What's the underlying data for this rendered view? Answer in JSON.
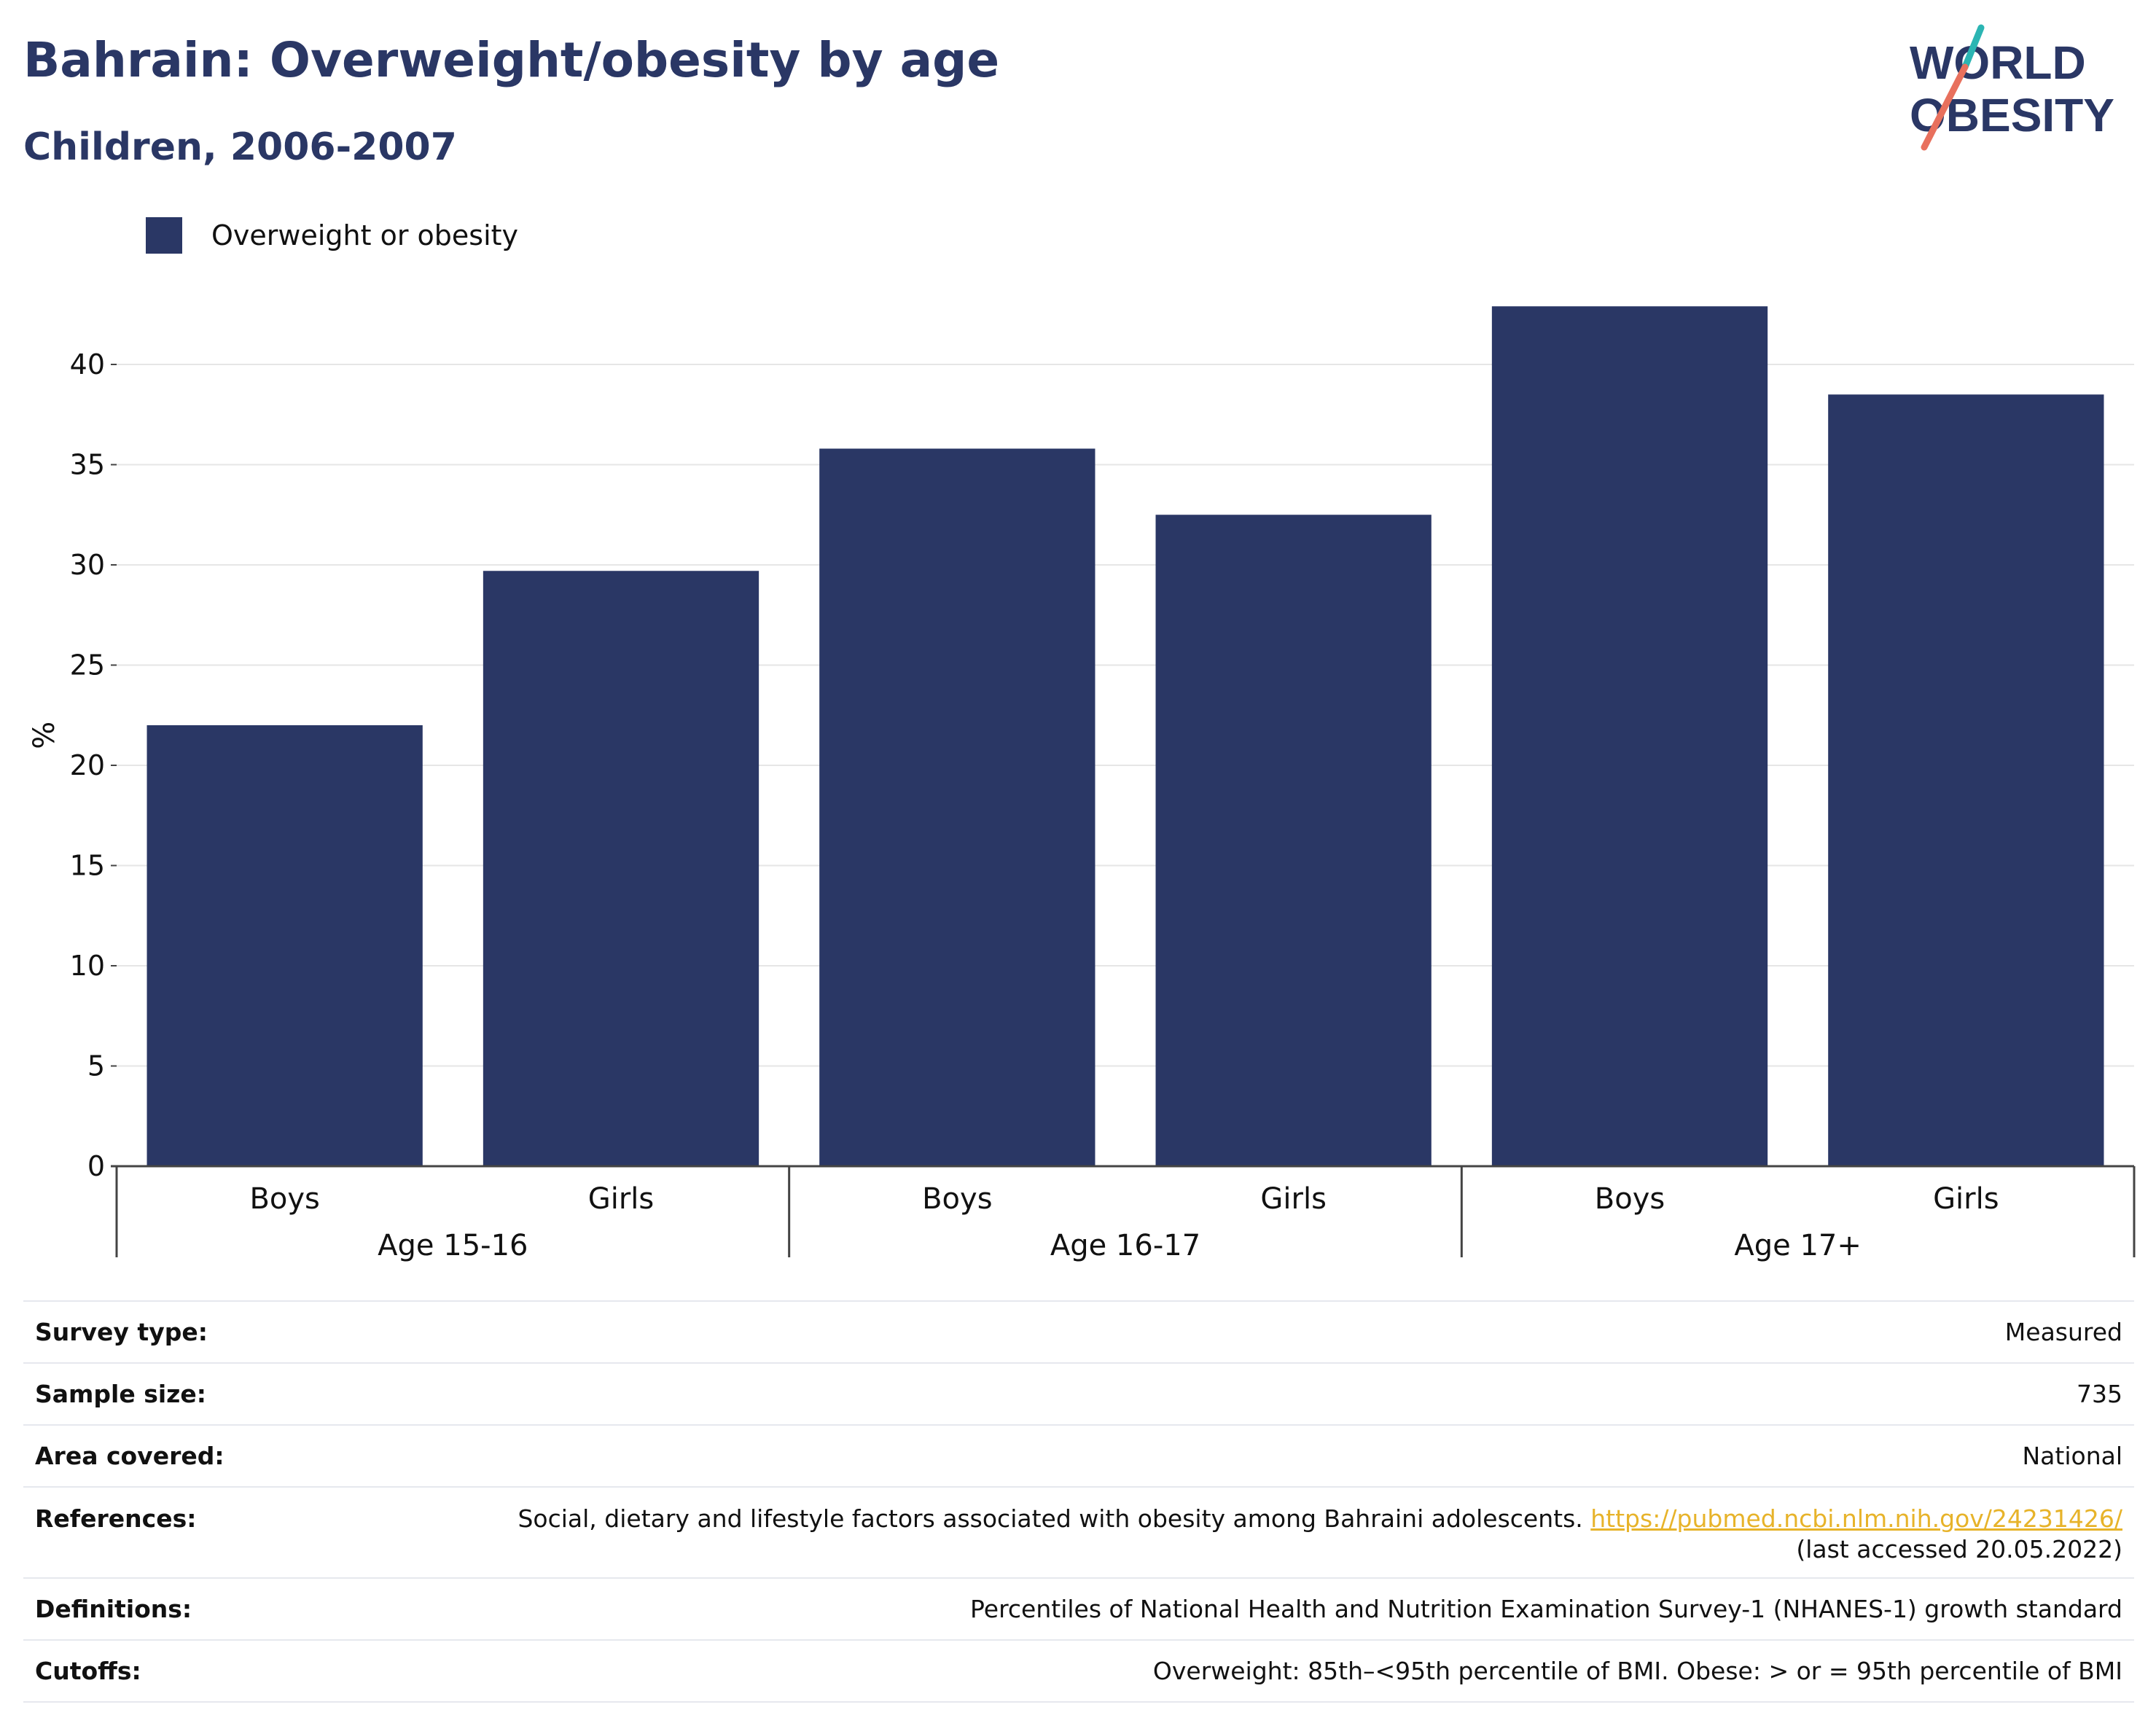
{
  "header": {
    "title": "Bahrain: Overweight/obesity by age",
    "subtitle": "Children, 2006-2007"
  },
  "logo": {
    "line1": "WORLD",
    "line2": "OBESITY"
  },
  "colors": {
    "bar": "#2a3765",
    "title": "#2a3765",
    "grid": "#e6e6e6",
    "axis": "#444444",
    "link": "#e7b32a",
    "logo_teal": "#2bb5b3",
    "logo_coral": "#e8705d"
  },
  "chart_data": {
    "type": "bar",
    "legend": {
      "label": "Overweight or obesity",
      "placement": "top-left"
    },
    "ylabel": "%",
    "ylim": [
      0,
      43
    ],
    "yticks": [
      0,
      5,
      10,
      15,
      20,
      25,
      30,
      35,
      40
    ],
    "grid": true,
    "groups": [
      {
        "label": "Age 15-16",
        "bars": [
          {
            "category": "Boys",
            "value": 22.0
          },
          {
            "category": "Girls",
            "value": 29.7
          }
        ]
      },
      {
        "label": "Age 16-17",
        "bars": [
          {
            "category": "Boys",
            "value": 35.8
          },
          {
            "category": "Girls",
            "value": 32.5
          }
        ]
      },
      {
        "label": "Age 17+",
        "bars": [
          {
            "category": "Boys",
            "value": 42.9
          },
          {
            "category": "Girls",
            "value": 38.5
          }
        ]
      }
    ]
  },
  "info": {
    "survey_type": {
      "label": "Survey type:",
      "value": "Measured"
    },
    "sample_size": {
      "label": "Sample size:",
      "value": "735"
    },
    "area_covered": {
      "label": "Area covered:",
      "value": "National"
    },
    "references": {
      "label": "References:",
      "text": "Social, dietary and lifestyle factors associated with obesity among Bahraini adolescents.",
      "link": "https://pubmed.ncbi.nlm.nih.gov/24231426/",
      "accessed": "(last accessed 20.05.2022)"
    },
    "definitions": {
      "label": "Definitions:",
      "value": "Percentiles of National Health and Nutrition Examination Survey-1 (NHANES-1) growth standard"
    },
    "cutoffs": {
      "label": "Cutoffs:",
      "value": "Overweight: 85th–<95th percentile of BMI. Obese: > or = 95th percentile of BMI"
    }
  }
}
